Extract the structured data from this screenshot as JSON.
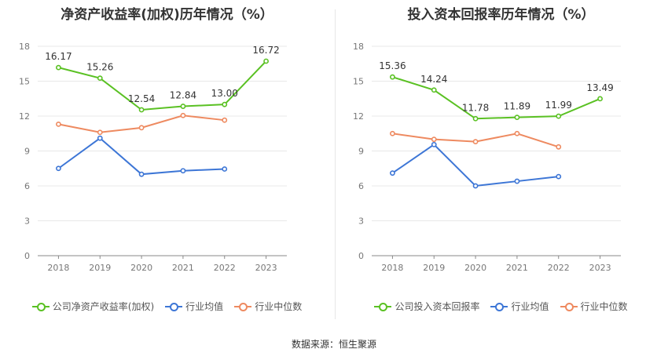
{
  "source_label": "数据来源：恒生聚源",
  "chart_data": [
    {
      "type": "line",
      "title": "净资产收益率(加权)历年情况（%）",
      "categories": [
        "2018",
        "2019",
        "2020",
        "2021",
        "2022",
        "2023"
      ],
      "yticks": [
        "0",
        "3",
        "6",
        "9",
        "12",
        "15",
        "18"
      ],
      "ylim": [
        0,
        18
      ],
      "grid": true,
      "legend_position": "bottom",
      "series": [
        {
          "name": "公司净资产收益率(加权)",
          "color": "#5ac123",
          "labels": true,
          "values": [
            16.17,
            15.26,
            12.54,
            12.84,
            13.0,
            16.72
          ],
          "value_labels": [
            "16.17",
            "15.26",
            "12.54",
            "12.84",
            "13.00",
            "16.72"
          ]
        },
        {
          "name": "行业均值",
          "color": "#3d76d6",
          "labels": false,
          "values": [
            7.5,
            10.1,
            7.0,
            7.3,
            7.45,
            null
          ]
        },
        {
          "name": "行业中位数",
          "color": "#ee8a60",
          "labels": false,
          "values": [
            11.3,
            10.6,
            11.0,
            12.05,
            11.65,
            null
          ]
        }
      ]
    },
    {
      "type": "line",
      "title": "投入资本回报率历年情况（%）",
      "categories": [
        "2018",
        "2019",
        "2020",
        "2021",
        "2022",
        "2023"
      ],
      "yticks": [
        "0",
        "3",
        "6",
        "9",
        "12",
        "15",
        "18"
      ],
      "ylim": [
        0,
        18
      ],
      "grid": true,
      "legend_position": "bottom",
      "series": [
        {
          "name": "公司投入资本回报率",
          "color": "#5ac123",
          "labels": true,
          "values": [
            15.36,
            14.24,
            11.78,
            11.89,
            11.99,
            13.49
          ],
          "value_labels": [
            "15.36",
            "14.24",
            "11.78",
            "11.89",
            "11.99",
            "13.49"
          ]
        },
        {
          "name": "行业均值",
          "color": "#3d76d6",
          "labels": false,
          "values": [
            7.1,
            9.55,
            6.0,
            6.4,
            6.8,
            null
          ]
        },
        {
          "name": "行业中位数",
          "color": "#ee8a60",
          "labels": false,
          "values": [
            10.5,
            10.0,
            9.8,
            10.5,
            9.35,
            null
          ]
        }
      ]
    }
  ]
}
